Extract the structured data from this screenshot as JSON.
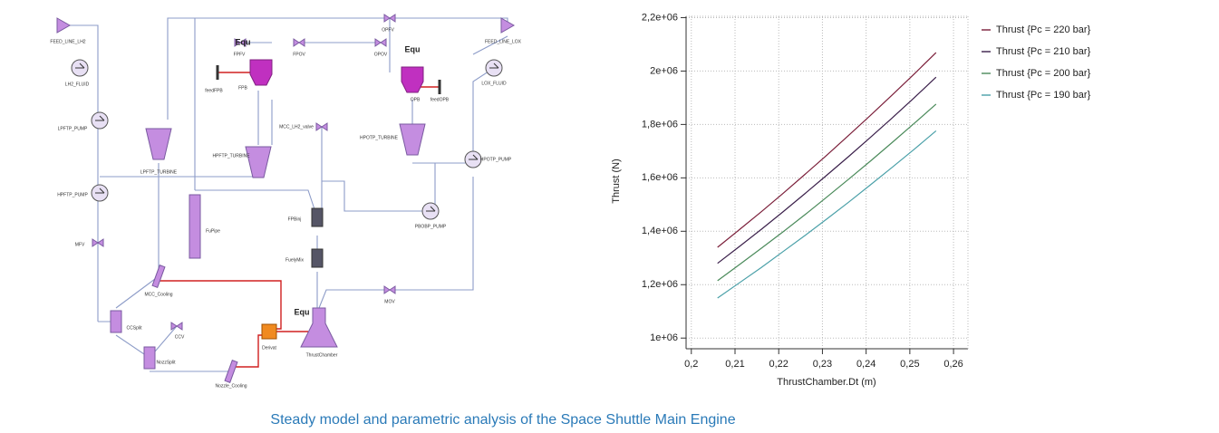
{
  "caption": "Steady model and parametric analysis of the Space Shuttle Main Engine",
  "diagram": {
    "nodes": [
      {
        "label": "FEED_LINE_LH2"
      },
      {
        "label": "LH2_FLUID"
      },
      {
        "label": "LPFTP_PUMP"
      },
      {
        "label": "LPFTP_TURBINE"
      },
      {
        "label": "HPFTP_PUMP"
      },
      {
        "label": "MFV"
      },
      {
        "label": "FuPipe"
      },
      {
        "label": "MCC_Cooling"
      },
      {
        "label": "CCSplit"
      },
      {
        "label": "NozzSplit"
      },
      {
        "label": "CCV"
      },
      {
        "label": "Nozzle_Cooling"
      },
      {
        "label": "Derivat"
      },
      {
        "label": "ThrustChamber"
      },
      {
        "label": "FPB"
      },
      {
        "label": "feedFPB"
      },
      {
        "label": "FPFV"
      },
      {
        "label": "FPOV"
      },
      {
        "label": "OPFV"
      },
      {
        "label": "OPOV"
      },
      {
        "label": "MCC_LH2_valve"
      },
      {
        "label": "HPFTP_TURBINE"
      },
      {
        "label": "FPBinj"
      },
      {
        "label": "FuelyMix"
      },
      {
        "label": "OPB"
      },
      {
        "label": "feedOPB"
      },
      {
        "label": "HPOTP_TURBINE"
      },
      {
        "label": "HPOTP_PUMP"
      },
      {
        "label": "PBOBP_PUMP"
      },
      {
        "label": "FEED_LINE_LOX"
      },
      {
        "label": "LOX_FLUID"
      },
      {
        "label": "MOV"
      }
    ],
    "tags": [
      "Equ",
      "Equ",
      "Equ"
    ]
  },
  "chart_data": {
    "type": "line",
    "x_label": "ThrustChamber.Dt (m)",
    "y_label": "Thrust (N)",
    "x": [
      0.206,
      0.211,
      0.216,
      0.221,
      0.226,
      0.231,
      0.236,
      0.241,
      0.246,
      0.251,
      0.256
    ],
    "series": [
      {
        "name": "Thrust {Pc = 220 bar}",
        "color": "#7b1f3a",
        "values": [
          1340000,
          1406000,
          1473000,
          1542000,
          1613000,
          1685000,
          1759000,
          1834000,
          1911000,
          1989000,
          2069000
        ]
      },
      {
        "name": "Thrust {Pc = 210 bar}",
        "color": "#3a1f4a",
        "values": [
          1280000,
          1343000,
          1407000,
          1473000,
          1541000,
          1610000,
          1680000,
          1752000,
          1825000,
          1900000,
          1977000
        ]
      },
      {
        "name": "Thrust {Pc = 200 bar}",
        "color": "#4a8a5a",
        "values": [
          1215000,
          1275000,
          1336000,
          1398000,
          1462000,
          1528000,
          1595000,
          1663000,
          1733000,
          1804000,
          1876000
        ]
      },
      {
        "name": "Thrust {Pc = 190 bar}",
        "color": "#4aa0a8",
        "values": [
          1150000,
          1207000,
          1264000,
          1324000,
          1384000,
          1446000,
          1509000,
          1574000,
          1640000,
          1707000,
          1776000
        ]
      }
    ],
    "xlim": [
      0.1988,
      0.2633
    ],
    "ylim": [
      960000,
      2205000
    ],
    "xticks": [
      {
        "value": 0.2,
        "label": "0,2"
      },
      {
        "value": 0.21,
        "label": "0,21"
      },
      {
        "value": 0.22,
        "label": "0,22"
      },
      {
        "value": 0.23,
        "label": "0,23"
      },
      {
        "value": 0.24,
        "label": "0,24"
      },
      {
        "value": 0.25,
        "label": "0,25"
      },
      {
        "value": 0.26,
        "label": "0,26"
      }
    ],
    "yticks": [
      {
        "value": 1000000,
        "label": "1e+06"
      },
      {
        "value": 1200000,
        "label": "1,2e+06"
      },
      {
        "value": 1400000,
        "label": "1,4e+06"
      },
      {
        "value": 1600000,
        "label": "1,6e+06"
      },
      {
        "value": 1800000,
        "label": "1,8e+06"
      },
      {
        "value": 2000000,
        "label": "2e+06"
      },
      {
        "value": 2200000,
        "label": "2,2e+06"
      }
    ],
    "grid": true,
    "legend": "right"
  }
}
